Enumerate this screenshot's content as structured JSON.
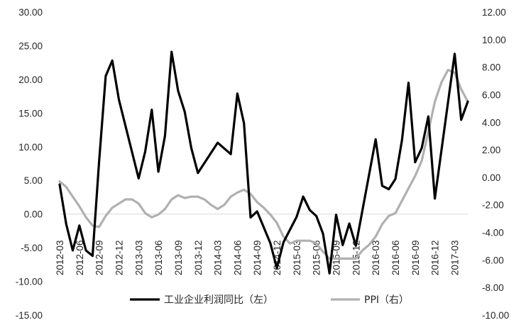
{
  "chart_data": {
    "type": "line",
    "title": "",
    "legend_position": "bottom",
    "grid": false,
    "x": [
      "2012-03",
      "2012-04",
      "2012-05",
      "2012-06",
      "2012-07",
      "2012-08",
      "2012-09",
      "2012-10",
      "2012-11",
      "2012-12",
      "2013-01",
      "2013-02",
      "2013-03",
      "2013-04",
      "2013-05",
      "2013-06",
      "2013-07",
      "2013-08",
      "2013-09",
      "2013-10",
      "2013-11",
      "2013-12",
      "2014-01",
      "2014-02",
      "2014-03",
      "2014-04",
      "2014-05",
      "2014-06",
      "2014-07",
      "2014-08",
      "2014-09",
      "2014-10",
      "2014-11",
      "2014-12",
      "2015-01",
      "2015-02",
      "2015-03",
      "2015-04",
      "2015-05",
      "2015-06",
      "2015-07",
      "2015-08",
      "2015-09",
      "2015-10",
      "2015-11",
      "2015-12",
      "2016-01",
      "2016-02",
      "2016-03",
      "2016-04",
      "2016-05",
      "2016-06",
      "2016-07",
      "2016-08",
      "2016-09",
      "2016-10",
      "2016-11",
      "2016-12",
      "2017-01",
      "2017-02",
      "2017-03",
      "2017-04",
      "2017-05"
    ],
    "x_tick_labels": [
      "2012-03",
      "2012-06",
      "2012-09",
      "2012-12",
      "2013-03",
      "2013-06",
      "2013-09",
      "2013-12",
      "2014-03",
      "2014-06",
      "2014-09",
      "2014-12",
      "2015-03",
      "2015-06",
      "2015-09",
      "2015-12",
      "2016-03",
      "2016-06",
      "2016-09",
      "2016-12",
      "2017-03"
    ],
    "y_left": {
      "ylim": [
        -15,
        30
      ],
      "ticks": [
        "30.00",
        "25.00",
        "20.00",
        "15.00",
        "10.00",
        "5.00",
        "0.00",
        "-5.00",
        "-10.00",
        "-15.00"
      ]
    },
    "y_right": {
      "ylim": [
        -10,
        12
      ],
      "ticks": [
        "12.00",
        "10.00",
        "8.00",
        "6.00",
        "4.00",
        "2.00",
        "0.00",
        "-2.00",
        "-4.00",
        "-6.00",
        "-8.00",
        "-10.00"
      ]
    },
    "series": [
      {
        "name": "工业企业利润同比（左）",
        "axis": "left",
        "color": "#000000",
        "values": [
          4.4,
          -1.5,
          -5.4,
          -1.7,
          -5.4,
          -6.2,
          7.8,
          20.5,
          22.8,
          17.0,
          null,
          null,
          5.3,
          9.3,
          15.5,
          6.3,
          11.6,
          24.1,
          18.3,
          15.2,
          9.8,
          6.1,
          null,
          null,
          10.6,
          null,
          8.9,
          17.9,
          13.5,
          -0.5,
          0.4,
          null,
          -4.3,
          -8.0,
          -4.2,
          null,
          -0.4,
          2.6,
          0.6,
          -0.3,
          -2.9,
          -8.8,
          -0.1,
          -4.6,
          -1.4,
          -4.7,
          null,
          null,
          11.1,
          4.2,
          3.7,
          5.2,
          11.0,
          19.5,
          7.7,
          9.8,
          14.5,
          2.3,
          null,
          null,
          23.8,
          14.0,
          16.7
        ]
      },
      {
        "name": "PPI（右）",
        "axis": "right",
        "color": "#b0b0b0",
        "values": [
          -0.3,
          -0.7,
          -1.4,
          -2.1,
          -2.9,
          -3.5,
          -3.6,
          -2.8,
          -2.2,
          -1.9,
          -1.6,
          -1.6,
          -1.9,
          -2.6,
          -2.9,
          -2.7,
          -2.3,
          -1.6,
          -1.3,
          -1.5,
          -1.4,
          -1.4,
          -1.6,
          -2.0,
          -2.3,
          -2.0,
          -1.4,
          -1.1,
          -0.9,
          -1.2,
          -1.8,
          -2.2,
          -2.7,
          -3.3,
          -4.3,
          -4.8,
          -4.6,
          -4.6,
          -4.6,
          -4.8,
          -5.4,
          -5.9,
          -5.9,
          -5.9,
          -5.9,
          -5.9,
          -5.3,
          -4.9,
          -4.3,
          -3.4,
          -2.8,
          -2.6,
          -1.7,
          -0.8,
          0.1,
          1.2,
          3.3,
          5.5,
          6.9,
          7.8,
          7.6,
          6.4,
          5.5
        ]
      }
    ]
  }
}
